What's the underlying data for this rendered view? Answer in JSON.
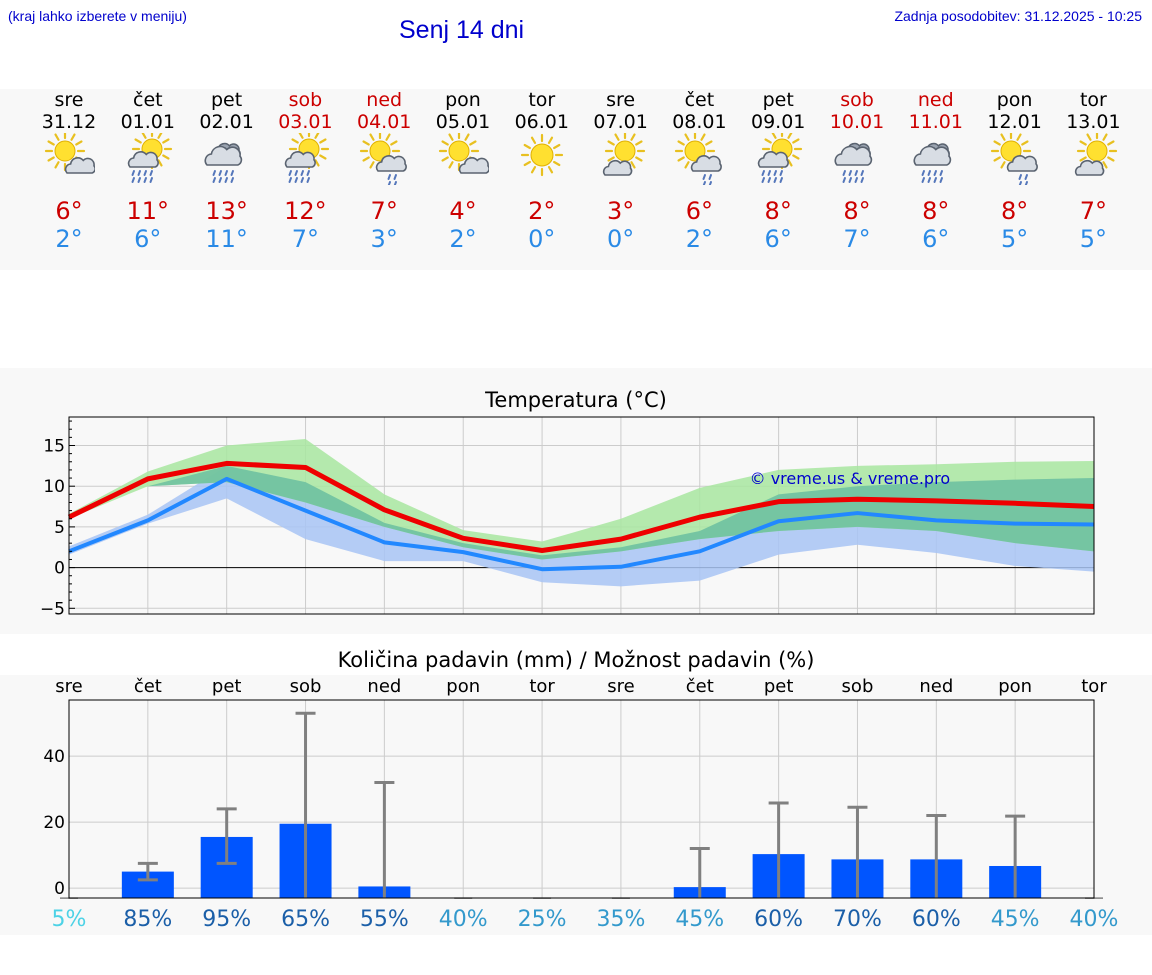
{
  "header": {
    "note": "(kraj lahko izberete v meniju)",
    "title": "Senj 14 dni",
    "updated": "Zadnja posodobitev: 31.12.2025 - 10:25"
  },
  "days": [
    {
      "dow": "sre",
      "date": "31.12",
      "weekend": false,
      "icon": "sun-cloud",
      "max": "6°",
      "min": "2°"
    },
    {
      "dow": "čet",
      "date": "01.01",
      "weekend": false,
      "icon": "sun-cloud-rain",
      "max": "11°",
      "min": "6°"
    },
    {
      "dow": "pet",
      "date": "02.01",
      "weekend": false,
      "icon": "cloud-rain",
      "max": "13°",
      "min": "11°"
    },
    {
      "dow": "sob",
      "date": "03.01",
      "weekend": true,
      "icon": "sun-cloud-rain",
      "max": "12°",
      "min": "7°"
    },
    {
      "dow": "ned",
      "date": "04.01",
      "weekend": true,
      "icon": "sun-cloud-drizzle",
      "max": "7°",
      "min": "3°"
    },
    {
      "dow": "pon",
      "date": "05.01",
      "weekend": false,
      "icon": "sun-cloud",
      "max": "4°",
      "min": "2°"
    },
    {
      "dow": "tor",
      "date": "06.01",
      "weekend": false,
      "icon": "sun",
      "max": "2°",
      "min": "0°"
    },
    {
      "dow": "sre",
      "date": "07.01",
      "weekend": false,
      "icon": "sun-cloud-small",
      "max": "3°",
      "min": "0°"
    },
    {
      "dow": "čet",
      "date": "08.01",
      "weekend": false,
      "icon": "sun-cloud-drizzle",
      "max": "6°",
      "min": "2°"
    },
    {
      "dow": "pet",
      "date": "09.01",
      "weekend": false,
      "icon": "sun-cloud-rain",
      "max": "8°",
      "min": "6°"
    },
    {
      "dow": "sob",
      "date": "10.01",
      "weekend": true,
      "icon": "cloud-rain",
      "max": "8°",
      "min": "7°"
    },
    {
      "dow": "ned",
      "date": "11.01",
      "weekend": true,
      "icon": "cloud-rain",
      "max": "8°",
      "min": "6°"
    },
    {
      "dow": "pon",
      "date": "12.01",
      "weekend": false,
      "icon": "sun-cloud-drizzle",
      "max": "8°",
      "min": "5°"
    },
    {
      "dow": "tor",
      "date": "13.01",
      "weekend": false,
      "icon": "sun-cloud-small",
      "max": "7°",
      "min": "5°"
    }
  ],
  "colors": {
    "max": "#ee0000",
    "min": "#2288ff",
    "max_band": "#a8e6a0",
    "min_band": "#a8c4f4",
    "overlap": "#6cc0a0",
    "precip_bar": "#0055ff",
    "error_bar": "#808080",
    "watermark": "#0000cc"
  },
  "chart_data": [
    {
      "type": "line",
      "title": "Temperatura (°C)",
      "yticks": [
        "−5",
        "0",
        "5",
        "10",
        "15"
      ],
      "yticks_values": [
        -5,
        0,
        5,
        10,
        15
      ],
      "ylim": [
        -5.7,
        18.5
      ],
      "watermark": "© vreme.us & vreme.pro",
      "x": [
        0,
        1,
        2,
        3,
        4,
        5,
        6,
        7,
        8,
        9,
        10,
        11,
        12,
        13
      ],
      "series": [
        {
          "name": "max",
          "values": [
            6.2,
            10.9,
            12.8,
            12.3,
            7.1,
            3.6,
            2.1,
            3.5,
            6.2,
            8.1,
            8.4,
            8.2,
            7.9,
            7.5
          ]
        },
        {
          "name": "min",
          "values": [
            2.0,
            5.8,
            10.9,
            7.0,
            3.1,
            1.9,
            -0.2,
            0.1,
            2.0,
            5.7,
            6.7,
            5.8,
            5.4,
            5.3
          ]
        }
      ],
      "max_band_low": [
        6.0,
        10.0,
        10.5,
        8.0,
        5.0,
        2.5,
        1.0,
        2.0,
        3.5,
        4.5,
        5.0,
        4.5,
        3.0,
        2.0
      ],
      "max_band_high": [
        6.6,
        11.8,
        15.0,
        15.8,
        9.0,
        4.6,
        3.2,
        6.0,
        9.8,
        12.0,
        12.5,
        12.7,
        13.0,
        13.1
      ],
      "min_band_low": [
        1.6,
        5.4,
        8.5,
        3.5,
        0.8,
        0.8,
        -1.8,
        -2.3,
        -1.6,
        1.6,
        2.8,
        1.8,
        0.2,
        -0.5
      ],
      "min_band_high": [
        2.6,
        6.5,
        12.5,
        10.5,
        5.5,
        3.0,
        1.5,
        2.5,
        4.5,
        9.0,
        10.0,
        10.5,
        10.8,
        11.0
      ]
    },
    {
      "type": "bar",
      "title": "Količina padavin (mm) / Možnost padavin (%)",
      "categories": [
        "sre",
        "čet",
        "pet",
        "sob",
        "ned",
        "pon",
        "tor",
        "sre",
        "čet",
        "pet",
        "sob",
        "ned",
        "pon",
        "tor"
      ],
      "values": [
        0,
        5.0,
        15.5,
        19.5,
        0.5,
        0,
        0,
        0,
        0.3,
        10.3,
        8.7,
        8.7,
        6.7,
        0
      ],
      "err_low": [
        0,
        2.5,
        7.5,
        0,
        0,
        0,
        0,
        0,
        0,
        0,
        0,
        0,
        0,
        0
      ],
      "err_high": [
        0,
        7.5,
        24.0,
        53.0,
        32.0,
        0,
        0,
        0,
        12.0,
        25.8,
        24.5,
        22.0,
        21.8,
        0
      ],
      "probabilities": [
        "5%",
        "85%",
        "95%",
        "65%",
        "55%",
        "40%",
        "25%",
        "35%",
        "45%",
        "60%",
        "70%",
        "60%",
        "45%",
        "40%"
      ],
      "prob_colors": [
        "#4dd2e6",
        "#1b5fa8",
        "#1b5fa8",
        "#1b5fa8",
        "#1b5fa8",
        "#3399cc",
        "#3399cc",
        "#3399cc",
        "#3399cc",
        "#1b5fa8",
        "#1b5fa8",
        "#1b5fa8",
        "#3399cc",
        "#3399cc"
      ],
      "yticks": [
        "0",
        "20",
        "40"
      ],
      "yticks_values": [
        0,
        20,
        40
      ],
      "ylim": [
        -3,
        57
      ]
    }
  ]
}
